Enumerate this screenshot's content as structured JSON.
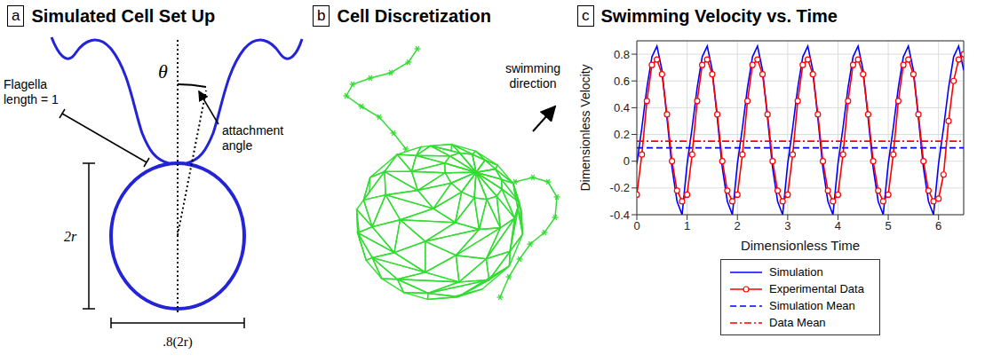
{
  "panel_labels": [
    "a",
    "b",
    "c"
  ],
  "panel_a": {
    "title": "Simulated Cell Set Up",
    "flagella_label": "Flagella length = 1",
    "angle_symbol": "θ",
    "angle_label": "attachment angle",
    "height_label": "2r",
    "width_label": ".8(2r)"
  },
  "panel_b": {
    "title": "Cell Discretization",
    "direction_label": "swimming direction"
  },
  "chart_data": {
    "type": "line",
    "title": "Swimming Velocity vs. Time",
    "x_label": "Dimensionless Time",
    "y_label": "Dimensionless Velocity",
    "x": [
      0,
      0.1,
      0.2,
      0.3,
      0.4,
      0.5,
      0.6,
      0.7,
      0.8,
      0.9,
      1,
      1.1,
      1.2,
      1.3,
      1.4,
      1.5,
      1.6,
      1.7,
      1.8,
      1.9,
      2,
      2.1,
      2.2,
      2.3,
      2.4,
      2.5,
      2.6,
      2.7,
      2.8,
      2.9,
      3,
      3.1,
      3.2,
      3.3,
      3.4,
      3.5,
      3.6,
      3.7,
      3.8,
      3.9,
      4,
      4.1,
      4.2,
      4.3,
      4.4,
      4.5,
      4.6,
      4.7,
      4.8,
      4.9,
      5,
      5.1,
      5.2,
      5.3,
      5.4,
      5.5,
      5.6,
      5.7,
      5.8,
      5.9,
      6,
      6.1,
      6.2,
      6.3,
      6.4,
      6.5
    ],
    "xlim": [
      0,
      6.5
    ],
    "xticks": [
      0,
      1,
      2,
      3,
      4,
      5,
      6
    ],
    "ylim": [
      -0.4,
      0.9
    ],
    "yticks": [
      -0.4,
      -0.2,
      0,
      0.2,
      0.4,
      0.6,
      0.8
    ],
    "grid": true,
    "legend": "bottom",
    "series": [
      {
        "name": "Simulation",
        "color": "#0000ff",
        "line_style": "solid",
        "marker": "none",
        "values": [
          -0.02,
          0.25,
          0.55,
          0.78,
          0.86,
          0.68,
          0.32,
          -0.05,
          -0.3,
          -0.4,
          -0.02,
          0.25,
          0.55,
          0.78,
          0.86,
          0.68,
          0.32,
          -0.05,
          -0.3,
          -0.4,
          -0.02,
          0.25,
          0.55,
          0.78,
          0.86,
          0.68,
          0.32,
          -0.05,
          -0.3,
          -0.4,
          -0.02,
          0.25,
          0.55,
          0.78,
          0.86,
          0.68,
          0.32,
          -0.05,
          -0.3,
          -0.4,
          -0.02,
          0.25,
          0.55,
          0.78,
          0.86,
          0.68,
          0.32,
          -0.05,
          -0.3,
          -0.4,
          -0.02,
          0.25,
          0.55,
          0.78,
          0.86,
          0.68,
          0.32,
          -0.05,
          -0.3,
          -0.4,
          -0.02,
          0.25,
          0.55,
          0.78,
          0.86,
          0.68
        ]
      },
      {
        "name": "Experimental Data",
        "color": "#ff0000",
        "line_style": "solid",
        "marker": "circle",
        "values": [
          -0.25,
          0.05,
          0.45,
          0.72,
          0.76,
          0.65,
          0.35,
          0,
          -0.22,
          -0.3,
          -0.25,
          0.05,
          0.45,
          0.72,
          0.76,
          0.65,
          0.35,
          0,
          -0.22,
          -0.3,
          -0.25,
          0.05,
          0.45,
          0.72,
          0.76,
          0.65,
          0.35,
          0,
          -0.22,
          -0.3,
          -0.25,
          0.05,
          0.45,
          0.72,
          0.76,
          0.65,
          0.35,
          0,
          -0.22,
          -0.3,
          -0.25,
          0.05,
          0.45,
          0.72,
          0.76,
          0.65,
          0.35,
          0,
          -0.22,
          -0.3,
          -0.25,
          0.05,
          0.45,
          0.72,
          0.76,
          0.65,
          0.35,
          0,
          -0.22,
          -0.3,
          -0.28,
          -0.1,
          0.3,
          0.6,
          0.76,
          0.8
        ]
      },
      {
        "name": "Simulation Mean",
        "color": "#0000ff",
        "line_style": "dashed",
        "marker": "none",
        "x": [
          0,
          6.5
        ],
        "values": [
          0.1,
          0.1
        ]
      },
      {
        "name": "Data Mean",
        "color": "#ff0000",
        "line_style": "dashdot",
        "marker": "none",
        "x": [
          0,
          6.5
        ],
        "values": [
          0.15,
          0.15
        ]
      }
    ]
  }
}
